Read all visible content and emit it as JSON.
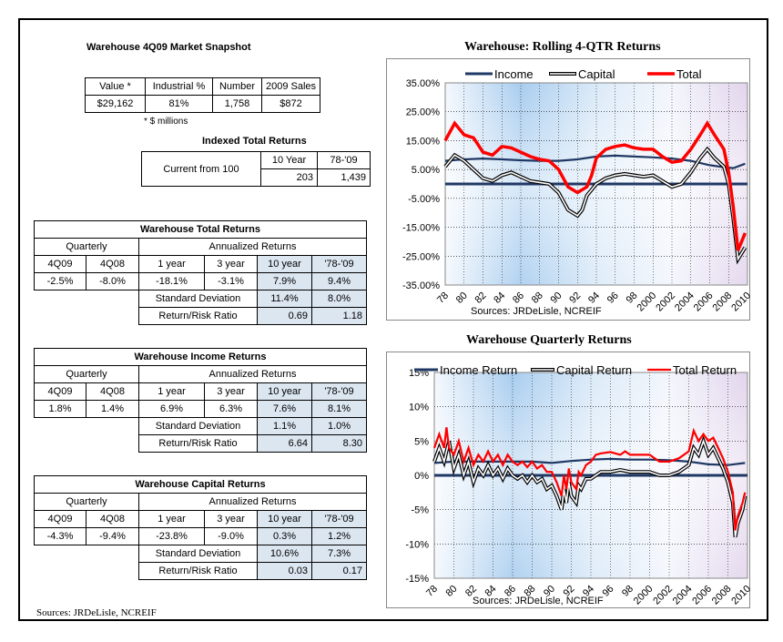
{
  "snapshot": {
    "title": "Warehouse 4Q09 Market Snapshot",
    "headers": [
      "Value *",
      "Industrial %",
      "Number",
      "2009 Sales"
    ],
    "values": [
      "$29,162",
      "81%",
      "1,758",
      "$872"
    ],
    "footnote": "* $ millions"
  },
  "indexed": {
    "title": "Indexed Total Returns",
    "row_label": "Current from 100",
    "headers": [
      "10 Year",
      "78-'09"
    ],
    "values": [
      "203",
      "1,439"
    ]
  },
  "tables": [
    {
      "title": "Warehouse Total Returns",
      "quarterly_label": "Quarterly",
      "annualized_label": "Annualized Returns",
      "col_headers": [
        "4Q09",
        "4Q08",
        "1 year",
        "3 year",
        "10 year",
        "'78-'09"
      ],
      "values": [
        "-2.5%",
        "-8.0%",
        "-18.1%",
        "-3.1%",
        "7.9%",
        "9.4%"
      ],
      "sd_label": "Standard Deviation",
      "sd_values": [
        "11.4%",
        "8.0%"
      ],
      "rr_label": "Return/Risk Ratio",
      "rr_values": [
        "0.69",
        "1.18"
      ]
    },
    {
      "title": "Warehouse Income Returns",
      "quarterly_label": "Quarterly",
      "annualized_label": "Annualized Returns",
      "col_headers": [
        "4Q09",
        "4Q08",
        "1 year",
        "3 year",
        "10 year",
        "'78-'09"
      ],
      "values": [
        "1.8%",
        "1.4%",
        "6.9%",
        "6.3%",
        "7.6%",
        "8.1%"
      ],
      "sd_label": "Standard Deviation",
      "sd_values": [
        "1.1%",
        "1.0%"
      ],
      "rr_label": "Return/Risk Ratio",
      "rr_values": [
        "6.64",
        "8.30"
      ]
    },
    {
      "title": "Warehouse Capital Returns",
      "quarterly_label": "Quarterly",
      "annualized_label": "Annualized Returns",
      "col_headers": [
        "4Q09",
        "4Q08",
        "1 year",
        "3 year",
        "10 year",
        "'78-'09"
      ],
      "values": [
        "-4.3%",
        "-9.4%",
        "-23.8%",
        "-9.0%",
        "0.3%",
        "1.2%"
      ],
      "sd_label": "Standard Deviation",
      "sd_values": [
        "10.6%",
        "7.3%"
      ],
      "rr_label": "Return/Risk Ratio",
      "rr_values": [
        "0.03",
        "0.17"
      ]
    }
  ],
  "sources_left": "Sources: JRDeLisle, NCREIF",
  "colors": {
    "income": "#1f3864",
    "capital": "#000000",
    "total": "#ff0000",
    "table_shade": "#dce6f1"
  },
  "chart_data": [
    {
      "type": "line",
      "title": "Warehouse:  Rolling 4-QTR Returns",
      "source": "Sources: JRDeLisle, NCREIF",
      "y_ticks": [
        "35.00%",
        "25.00%",
        "15.00%",
        "5.00%",
        "-5.00%",
        "-15.00%",
        "-25.00%",
        "-35.00%"
      ],
      "x_ticks": [
        "78",
        "80",
        "82",
        "84",
        "86",
        "88",
        "90",
        "92",
        "94",
        "96",
        "98",
        "2000",
        "2002",
        "2004",
        "2006",
        "2008",
        "2010"
      ],
      "ylim": [
        -35,
        35
      ],
      "xlim": [
        1978,
        2010
      ],
      "legend": "top",
      "series": [
        {
          "name": "Income",
          "points": [
            [
              1978,
              8
            ],
            [
              1980,
              8.5
            ],
            [
              1982,
              8.8
            ],
            [
              1984,
              8.5
            ],
            [
              1986,
              8.2
            ],
            [
              1988,
              8
            ],
            [
              1990,
              8
            ],
            [
              1992,
              8.5
            ],
            [
              1994,
              9.5
            ],
            [
              1996,
              9.8
            ],
            [
              1998,
              9.5
            ],
            [
              2000,
              9.2
            ],
            [
              2002,
              8.8
            ],
            [
              2004,
              8
            ],
            [
              2006,
              6.5
            ],
            [
              2007.5,
              5.8
            ],
            [
              2008.5,
              5.5
            ],
            [
              2009.75,
              7
            ]
          ]
        },
        {
          "name": "Capital",
          "points": [
            [
              1978,
              6
            ],
            [
              1979,
              10
            ],
            [
              1980,
              8
            ],
            [
              1981,
              5
            ],
            [
              1982,
              2
            ],
            [
              1983,
              1
            ],
            [
              1984,
              3
            ],
            [
              1985,
              4
            ],
            [
              1986,
              2.5
            ],
            [
              1987,
              1
            ],
            [
              1988,
              0.5
            ],
            [
              1989,
              0
            ],
            [
              1990,
              -3
            ],
            [
              1991,
              -9
            ],
            [
              1992,
              -11
            ],
            [
              1992.5,
              -9
            ],
            [
              1993,
              -4
            ],
            [
              1994,
              0
            ],
            [
              1995,
              2
            ],
            [
              1996,
              3
            ],
            [
              1997,
              3.5
            ],
            [
              1998,
              3
            ],
            [
              1999,
              2.5
            ],
            [
              2000,
              3
            ],
            [
              2001,
              1
            ],
            [
              2002,
              -1
            ],
            [
              2003,
              0
            ],
            [
              2004,
              4
            ],
            [
              2005,
              9
            ],
            [
              2005.75,
              12
            ],
            [
              2006.5,
              9
            ],
            [
              2007.5,
              6
            ],
            [
              2008,
              0
            ],
            [
              2008.5,
              -12
            ],
            [
              2009,
              -26
            ],
            [
              2009.75,
              -22
            ]
          ]
        },
        {
          "name": "Total",
          "points": [
            [
              1978,
              15
            ],
            [
              1979,
              21
            ],
            [
              1980,
              17
            ],
            [
              1981,
              16
            ],
            [
              1982,
              11
            ],
            [
              1983,
              10
            ],
            [
              1984,
              13
            ],
            [
              1985,
              12.5
            ],
            [
              1986,
              11
            ],
            [
              1987,
              9.5
            ],
            [
              1988,
              8.5
            ],
            [
              1989,
              8
            ],
            [
              1990,
              5
            ],
            [
              1991,
              -1
            ],
            [
              1992,
              -3
            ],
            [
              1993,
              -1
            ],
            [
              1993.5,
              3
            ],
            [
              1994,
              9
            ],
            [
              1995,
              12
            ],
            [
              1996,
              13
            ],
            [
              1997,
              13.5
            ],
            [
              1998,
              12.5
            ],
            [
              1999,
              12
            ],
            [
              2000,
              12
            ],
            [
              2001,
              9.5
            ],
            [
              2002,
              7.5
            ],
            [
              2003,
              8
            ],
            [
              2004,
              12
            ],
            [
              2005,
              17
            ],
            [
              2005.75,
              21
            ],
            [
              2006.5,
              17
            ],
            [
              2007.5,
              12
            ],
            [
              2008,
              4
            ],
            [
              2008.5,
              -8
            ],
            [
              2009,
              -23
            ],
            [
              2009.75,
              -17
            ]
          ]
        }
      ]
    },
    {
      "type": "line",
      "title": "Warehouse Quarterly Returns",
      "source": "Sources: JRDeLisle, NCREIF",
      "y_ticks": [
        "15%",
        "10%",
        "5%",
        "0%",
        "-5%",
        "-10%",
        "-15%"
      ],
      "x_ticks": [
        "78",
        "80",
        "82",
        "84",
        "86",
        "88",
        "90",
        "92",
        "94",
        "96",
        "98",
        "2000",
        "2002",
        "2004",
        "2006",
        "2008",
        "2010"
      ],
      "ylim": [
        -15,
        15
      ],
      "xlim": [
        1978,
        2010
      ],
      "legend": "top",
      "series": [
        {
          "name": "Income Return",
          "points": [
            [
              1978,
              1.8
            ],
            [
              1980,
              2
            ],
            [
              1984,
              2
            ],
            [
              1988,
              2
            ],
            [
              1990,
              1.8
            ],
            [
              1992,
              2.1
            ],
            [
              1994,
              2.3
            ],
            [
              1996,
              2.4
            ],
            [
              1998,
              2.3
            ],
            [
              2000,
              2.3
            ],
            [
              2002,
              2.2
            ],
            [
              2004,
              2
            ],
            [
              2006,
              1.6
            ],
            [
              2008,
              1.5
            ],
            [
              2009.75,
              1.8
            ]
          ]
        },
        {
          "name": "Capital Return",
          "points": [
            [
              1978,
              2
            ],
            [
              1978.5,
              4
            ],
            [
              1979,
              2
            ],
            [
              1979.5,
              5
            ],
            [
              1980,
              1
            ],
            [
              1980.5,
              3
            ],
            [
              1981,
              0
            ],
            [
              1981.5,
              2
            ],
            [
              1982,
              -1
            ],
            [
              1982.5,
              1
            ],
            [
              1983,
              0
            ],
            [
              1983.5,
              1.5
            ],
            [
              1984,
              0
            ],
            [
              1984.5,
              1
            ],
            [
              1985,
              -0.5
            ],
            [
              1985.5,
              1
            ],
            [
              1986,
              0
            ],
            [
              1986.5,
              -0.5
            ],
            [
              1987,
              0
            ],
            [
              1987.5,
              -1
            ],
            [
              1988,
              0
            ],
            [
              1988.5,
              -1
            ],
            [
              1989,
              -0.5
            ],
            [
              1989.5,
              -2
            ],
            [
              1990,
              -1.5
            ],
            [
              1990.5,
              -3
            ],
            [
              1991,
              -5
            ],
            [
              1991.25,
              -2
            ],
            [
              1991.5,
              -4
            ],
            [
              1991.75,
              -1
            ],
            [
              1992,
              -3
            ],
            [
              1992.5,
              -4
            ],
            [
              1992.75,
              -1.5
            ],
            [
              1993,
              -2
            ],
            [
              1993.5,
              -0.5
            ],
            [
              1994,
              -0.5
            ],
            [
              1995,
              0.5
            ],
            [
              1996,
              0.5
            ],
            [
              1997,
              0.8
            ],
            [
              1998,
              0.5
            ],
            [
              1999,
              0.5
            ],
            [
              2000,
              0.5
            ],
            [
              2001,
              0
            ],
            [
              2002,
              0
            ],
            [
              2003,
              0.5
            ],
            [
              2004,
              1.5
            ],
            [
              2004.5,
              4
            ],
            [
              2005,
              3
            ],
            [
              2005.5,
              5
            ],
            [
              2006,
              3
            ],
            [
              2006.5,
              4
            ],
            [
              2007,
              2.5
            ],
            [
              2007.5,
              1
            ],
            [
              2008,
              -1
            ],
            [
              2008.5,
              -4
            ],
            [
              2008.75,
              -9
            ],
            [
              2009,
              -7
            ],
            [
              2009.5,
              -5
            ],
            [
              2009.75,
              -3
            ]
          ]
        },
        {
          "name": "Total Return",
          "points": [
            [
              1978,
              4
            ],
            [
              1978.5,
              6
            ],
            [
              1979,
              4
            ],
            [
              1979.25,
              7
            ],
            [
              1979.5,
              4
            ],
            [
              1980,
              3
            ],
            [
              1980.5,
              5
            ],
            [
              1981,
              2
            ],
            [
              1981.5,
              4
            ],
            [
              1982,
              1.5
            ],
            [
              1982.5,
              3
            ],
            [
              1983,
              2
            ],
            [
              1983.5,
              3.5
            ],
            [
              1984,
              2
            ],
            [
              1984.5,
              3
            ],
            [
              1985,
              1.5
            ],
            [
              1985.5,
              3
            ],
            [
              1986,
              2
            ],
            [
              1986.5,
              1.5
            ],
            [
              1987,
              2
            ],
            [
              1987.5,
              1.2
            ],
            [
              1988,
              2
            ],
            [
              1988.5,
              1
            ],
            [
              1989,
              1.5
            ],
            [
              1989.5,
              0.5
            ],
            [
              1990,
              0.5
            ],
            [
              1990.5,
              -1
            ],
            [
              1991,
              -3
            ],
            [
              1991.25,
              0
            ],
            [
              1991.5,
              -2
            ],
            [
              1991.75,
              1
            ],
            [
              1992,
              -1
            ],
            [
              1992.5,
              -2
            ],
            [
              1992.75,
              0.5
            ],
            [
              1993,
              0
            ],
            [
              1993.5,
              1.5
            ],
            [
              1994,
              2
            ],
            [
              1994.5,
              3
            ],
            [
              1995,
              3.2
            ],
            [
              1996,
              3.4
            ],
            [
              1997,
              3
            ],
            [
              1997.5,
              3.5
            ],
            [
              1998,
              3
            ],
            [
              1999,
              3
            ],
            [
              2000,
              3
            ],
            [
              2000.5,
              2.5
            ],
            [
              2001,
              2
            ],
            [
              2002,
              2
            ],
            [
              2003,
              2.5
            ],
            [
              2004,
              3.5
            ],
            [
              2004.5,
              6.5
            ],
            [
              2005,
              5
            ],
            [
              2005.5,
              6
            ],
            [
              2006,
              5
            ],
            [
              2006.5,
              5.5
            ],
            [
              2007,
              4
            ],
            [
              2007.5,
              2.5
            ],
            [
              2008,
              0.5
            ],
            [
              2008.5,
              -2.5
            ],
            [
              2008.75,
              -8
            ],
            [
              2009,
              -6
            ],
            [
              2009.5,
              -4
            ],
            [
              2009.75,
              -2.5
            ]
          ]
        }
      ]
    }
  ]
}
